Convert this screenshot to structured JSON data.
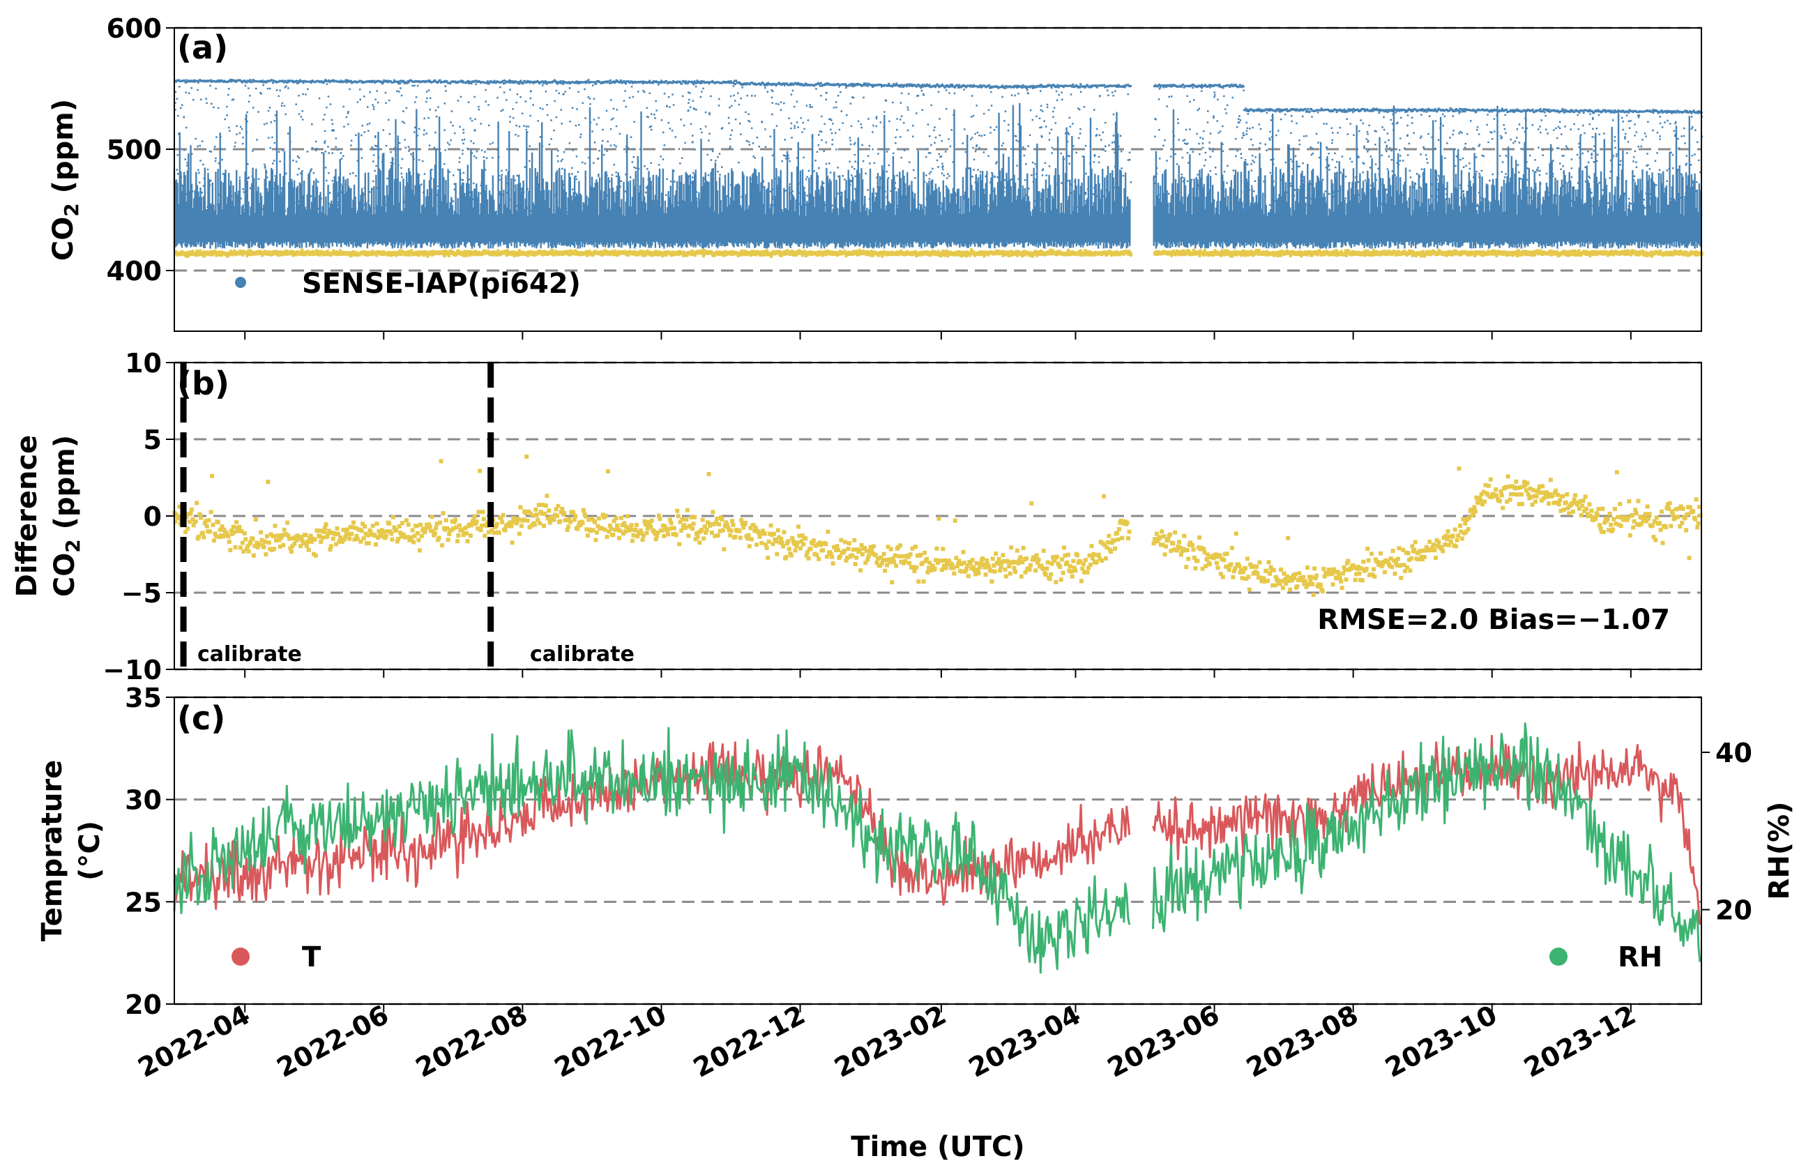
{
  "chart_data": [
    {
      "panel": "(a)",
      "type": "scatter",
      "ylabel_main": "CO",
      "ylabel_sub": "2",
      "ylabel_unit": " (ppm)",
      "ylim": [
        350,
        600
      ],
      "yticks": [
        400,
        500,
        600
      ],
      "gridlines": [
        400,
        500,
        600
      ],
      "legend": [
        {
          "name": "SENSE-IAP(pi642)",
          "color": "#4682b4"
        }
      ],
      "series": [
        {
          "name": "SENSE-IAP(pi642)",
          "color": "#4682b4",
          "note": "scattered 410-560 ppm, dense band 420-480 ppm, upper band ~557 ppm declining to ~532 ppm"
        },
        {
          "name": "reference",
          "color": "#e6c84b",
          "level_ppm": 416
        }
      ]
    },
    {
      "panel": "(b)",
      "type": "scatter",
      "ylabel_line1": "Difference",
      "ylabel_line2_main": "CO",
      "ylabel_line2_sub": "2",
      "ylabel_line2_unit": " (ppm)",
      "ylim": [
        -10,
        10
      ],
      "yticks": [
        -10,
        -5,
        0,
        5,
        10
      ],
      "ytick_labels": [
        "−10",
        "−5",
        "0",
        "5",
        "10"
      ],
      "gridlines": [
        -10,
        -5,
        0,
        5,
        10
      ],
      "series": [
        {
          "name": "difference",
          "color": "#e6c84b"
        }
      ],
      "calibrate_label": "calibrate",
      "calibrate_dates": [
        "2022-03-05",
        "2022-07-18"
      ],
      "stats_text": "RMSE=2.0 Bias=−1.07"
    },
    {
      "panel": "(c)",
      "type": "line",
      "ylabel_line1": "Temprature",
      "ylabel_line2": "(°C)",
      "ylabel_right": "RH(%)",
      "ylim": [
        20,
        35
      ],
      "yticks": [
        20,
        25,
        30,
        35
      ],
      "ylim_right": [
        8,
        47
      ],
      "yticks_right": [
        20,
        40
      ],
      "gridlines": [
        20,
        25,
        30,
        35
      ],
      "legend": [
        {
          "name": "T",
          "color": "#d9585b"
        },
        {
          "name": "RH",
          "color": "#3cb371"
        }
      ],
      "series": [
        {
          "name": "T",
          "color": "#d9585b",
          "axis": "left"
        },
        {
          "name": "RH",
          "color": "#3cb371",
          "axis": "right"
        }
      ]
    }
  ],
  "x_axis": {
    "label": "Time (UTC)",
    "start": "2022-03-01",
    "end": "2024-01-01",
    "ticks": [
      "2022-04",
      "2022-06",
      "2022-08",
      "2022-10",
      "2022-12",
      "2023-02",
      "2023-04",
      "2023-06",
      "2023-08",
      "2023-10",
      "2023-12"
    ],
    "gap": [
      "2023-04-25",
      "2023-05-05"
    ]
  }
}
